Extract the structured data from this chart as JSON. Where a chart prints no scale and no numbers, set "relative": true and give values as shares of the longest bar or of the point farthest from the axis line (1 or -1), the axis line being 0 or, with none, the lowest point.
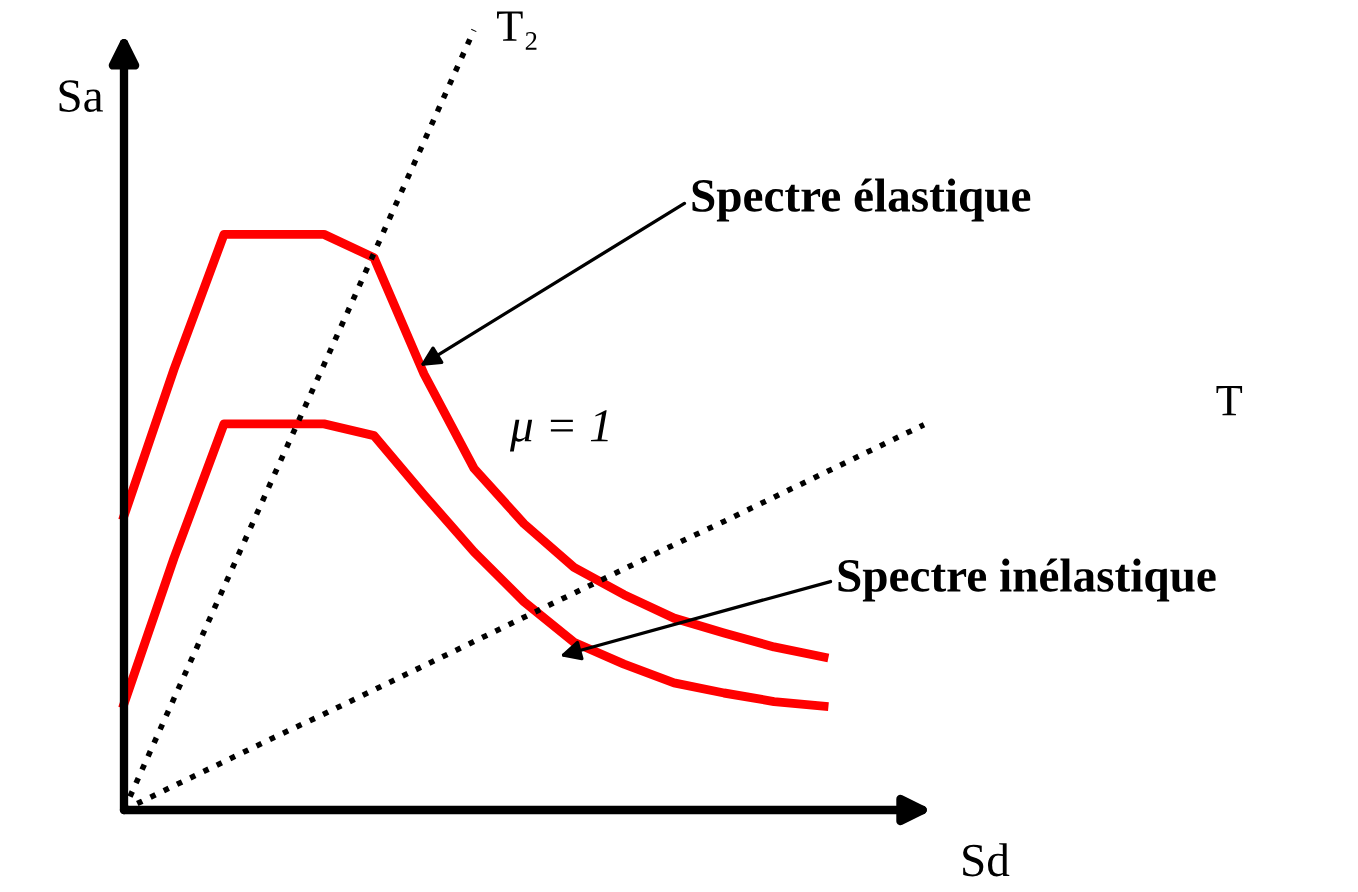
{
  "chart_data": {
    "type": "line",
    "relative": true,
    "xlabel": "Sd",
    "ylabel": "Sa",
    "legend": false,
    "marker": "none",
    "categories": [
      null,
      null,
      null,
      null,
      null,
      null,
      null,
      null,
      null,
      null,
      null,
      null,
      null,
      null,
      null,
      null,
      null
    ],
    "series": [
      {
        "color": "#ff0000",
        "line_style": "solid",
        "values": [
          0.377,
          0.565,
          0.738,
          0.738,
          0.738,
          0.708,
          0.559,
          0.438,
          0.367,
          0.311,
          0.276,
          0.246,
          0.227,
          0.209,
          0.196,
          null,
          null
        ]
      },
      {
        "color": "#ff0000",
        "line_style": "solid",
        "values": [
          0.136,
          0.323,
          0.495,
          0.495,
          0.495,
          0.48,
          0.404,
          0.331,
          0.267,
          0.215,
          0.187,
          0.163,
          0.15,
          0.139,
          0.133,
          null,
          null
        ]
      },
      {
        "name": "T₂",
        "color": "#000000",
        "line_style": "dotted",
        "values": [
          0,
          0.143,
          0.286,
          0.429,
          0.571,
          0.714,
          0.857,
          1,
          null,
          null,
          null,
          null,
          null,
          null,
          null,
          null,
          null
        ]
      },
      {
        "name": "T",
        "color": "#000000",
        "line_style": "dotted",
        "values": [
          0,
          0.031,
          0.062,
          0.093,
          0.123,
          0.154,
          0.185,
          0.216,
          0.247,
          0.278,
          0.309,
          0.34,
          0.37,
          0.401,
          0.432,
          0.463,
          0.494
        ]
      }
    ],
    "annotations": [
      "Spectre élastique",
      "Spectre inélastique",
      "μ = 1"
    ]
  }
}
